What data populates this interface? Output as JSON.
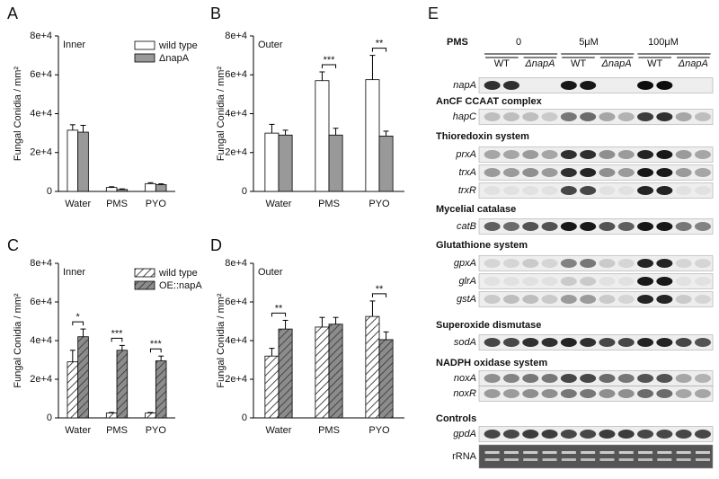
{
  "chart_data": [
    {
      "type": "bar",
      "panel": "A",
      "annotation": "Inner",
      "ylabel": "Fungal Conidia / mm²",
      "categories": [
        "Water",
        "PMS",
        "PYO"
      ],
      "legend": "upper right",
      "ylim": [
        0,
        80000
      ],
      "yticks": [
        0,
        {
          "value": 20000,
          "label": "2e+4"
        },
        {
          "value": 40000,
          "label": "4e+4"
        },
        {
          "value": 60000,
          "label": "6e+4"
        },
        {
          "value": 80000,
          "label": "8e+4"
        }
      ],
      "series": [
        {
          "name": "wild type",
          "color": "#ffffff",
          "values": [
            31500,
            2000,
            4000
          ],
          "errors": [
            2800,
            400,
            500
          ]
        },
        {
          "name": "ΔnapA",
          "color": "#999999",
          "values": [
            30500,
            1000,
            3500
          ],
          "errors": [
            3500,
            300,
            400
          ]
        }
      ]
    },
    {
      "type": "bar",
      "panel": "B",
      "annotation": "Outer",
      "ylabel": "Fungal Conidia / mm²",
      "categories": [
        "Water",
        "PMS",
        "PYO"
      ],
      "ylim": [
        0,
        80000
      ],
      "yticks": [
        0,
        {
          "value": 20000,
          "label": "2e+4"
        },
        {
          "value": 40000,
          "label": "4e+4"
        },
        {
          "value": 60000,
          "label": "6e+4"
        },
        {
          "value": 80000,
          "label": "8e+4"
        }
      ],
      "series": [
        {
          "name": "wild type",
          "color": "#ffffff",
          "values": [
            30000,
            57000,
            57500
          ],
          "errors": [
            4500,
            4500,
            12500
          ]
        },
        {
          "name": "ΔnapA",
          "color": "#999999",
          "values": [
            29000,
            29000,
            28500
          ],
          "errors": [
            2500,
            3500,
            2500
          ]
        }
      ],
      "significance": [
        {
          "category": "PMS",
          "text": "***"
        },
        {
          "category": "PYO",
          "text": "**"
        }
      ]
    },
    {
      "type": "bar",
      "panel": "C",
      "annotation": "Inner",
      "ylabel": "Fungal Conidia / mm²",
      "categories": [
        "Water",
        "PMS",
        "PYO"
      ],
      "legend": "upper right",
      "ylim": [
        0,
        80000
      ],
      "yticks": [
        0,
        {
          "value": 20000,
          "label": "2e+4"
        },
        {
          "value": 40000,
          "label": "4e+4"
        },
        {
          "value": 60000,
          "label": "6e+4"
        },
        {
          "value": 80000,
          "label": "8e+4"
        }
      ],
      "series": [
        {
          "name": "wild type",
          "color": "#ffffff",
          "hatch": true,
          "values": [
            29000,
            2500,
            2500
          ],
          "errors": [
            6000,
            300,
            300
          ]
        },
        {
          "name": "OE::napA",
          "color": "#8c8c8c",
          "hatch": true,
          "values": [
            42000,
            35000,
            29500
          ],
          "errors": [
            4000,
            2500,
            2500
          ]
        }
      ],
      "significance": [
        {
          "category": "Water",
          "text": "*"
        },
        {
          "category": "PMS",
          "text": "***"
        },
        {
          "category": "PYO",
          "text": "***"
        }
      ]
    },
    {
      "type": "bar",
      "panel": "D",
      "annotation": "Outer",
      "ylabel": "Fungal Conidia / mm²",
      "categories": [
        "Water",
        "PMS",
        "PYO"
      ],
      "ylim": [
        0,
        80000
      ],
      "yticks": [
        0,
        {
          "value": 20000,
          "label": "2e+4"
        },
        {
          "value": 40000,
          "label": "4e+4"
        },
        {
          "value": 60000,
          "label": "6e+4"
        },
        {
          "value": 80000,
          "label": "8e+4"
        }
      ],
      "series": [
        {
          "name": "wild type",
          "color": "#ffffff",
          "hatch": true,
          "values": [
            32000,
            47000,
            52500
          ],
          "errors": [
            4000,
            5000,
            8000
          ]
        },
        {
          "name": "OE::napA",
          "color": "#8c8c8c",
          "hatch": true,
          "values": [
            46000,
            48500,
            40500
          ],
          "errors": [
            4500,
            3500,
            4000
          ]
        }
      ],
      "significance": [
        {
          "category": "Water",
          "text": "**"
        },
        {
          "category": "PYO",
          "text": "**"
        }
      ]
    }
  ],
  "blot": {
    "panel": "E",
    "header": "PMS",
    "doses": [
      "0",
      "5μM",
      "100μM"
    ],
    "genotypes": [
      "WT",
      "ΔnapA"
    ],
    "top_genes": [
      "napA"
    ],
    "sections": [
      {
        "title": "AnCF CCAAT complex",
        "genes": [
          "hapC"
        ]
      },
      {
        "title": "Thioredoxin system",
        "genes": [
          "prxA",
          "trxA",
          "trxR"
        ]
      },
      {
        "title": "Mycelial catalase",
        "genes": [
          "catB"
        ]
      },
      {
        "title": "Glutathione system",
        "genes": [
          "gpxA",
          "glrA",
          "gstA"
        ]
      },
      {
        "title": "Superoxide dismutase",
        "genes": [
          "sodA"
        ]
      },
      {
        "title": "NADPH oxidase system",
        "genes": [
          "noxA",
          "noxR"
        ]
      },
      {
        "title": "Controls",
        "genes": [
          "gpdA",
          "rRNA"
        ]
      }
    ]
  }
}
